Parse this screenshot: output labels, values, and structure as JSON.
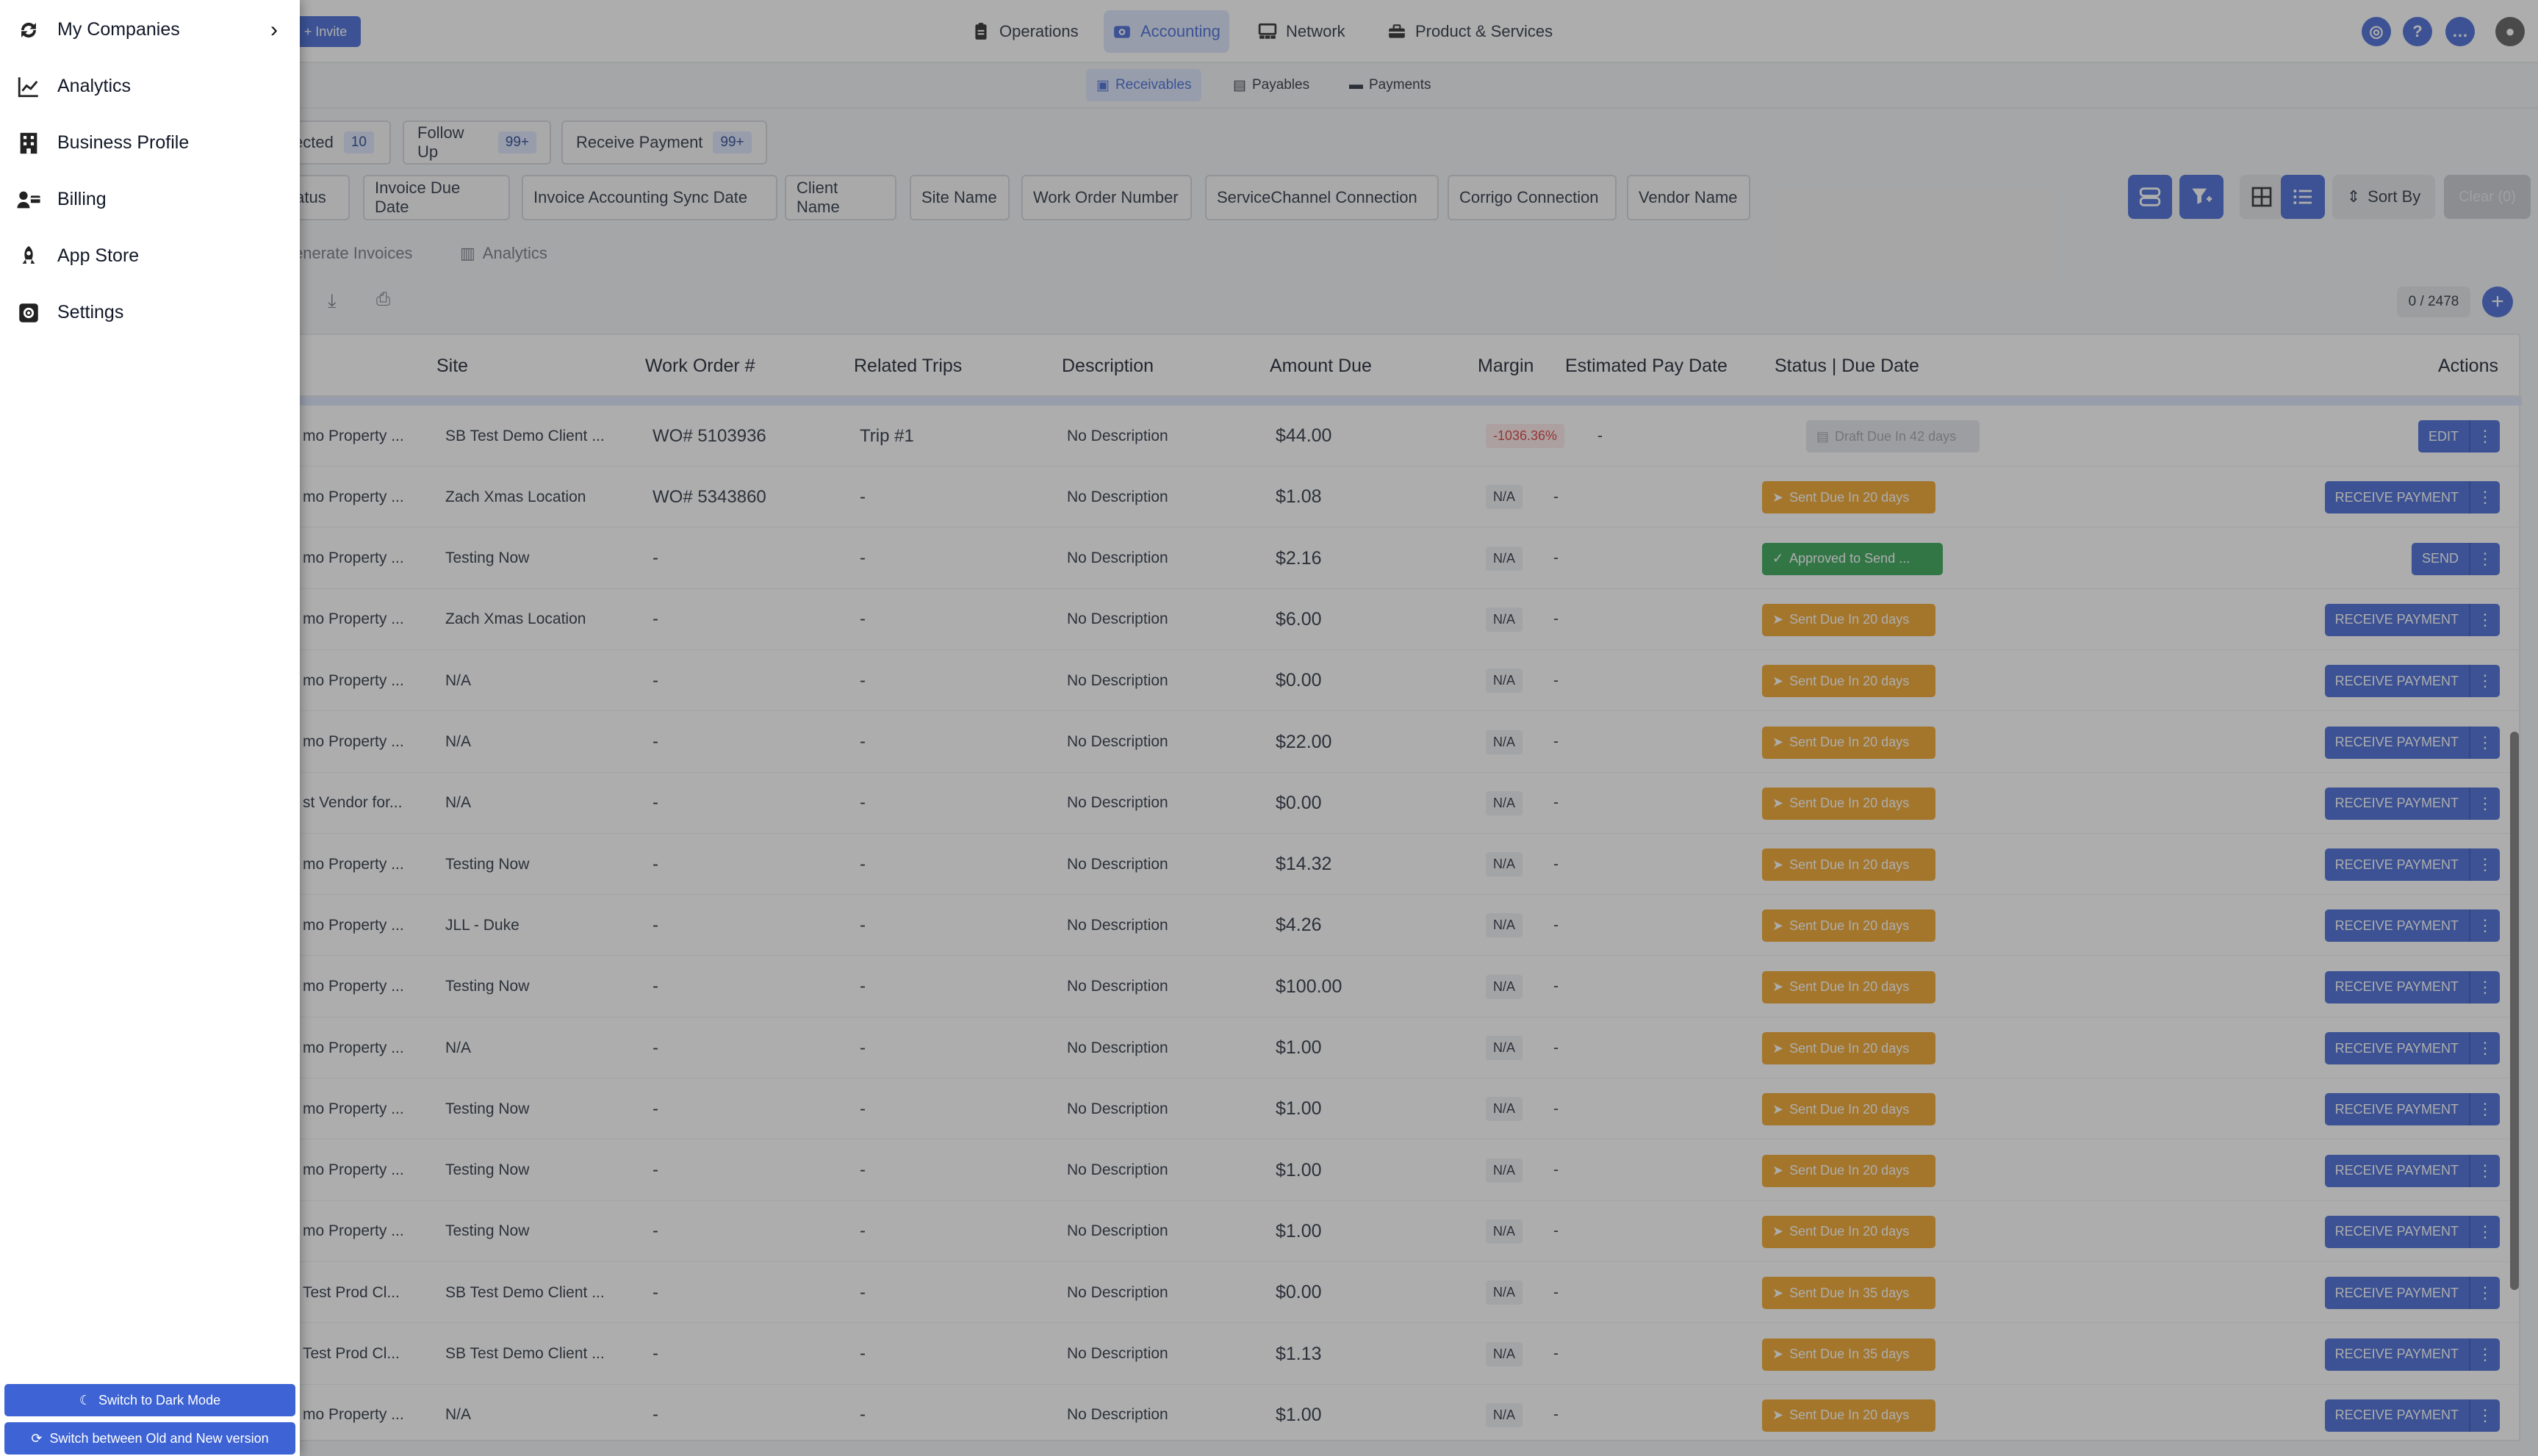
{
  "top_nav": {
    "invite": "+ Invite",
    "items": [
      {
        "label": "Operations",
        "icon": "clipboard-icon"
      },
      {
        "label": "Accounting",
        "icon": "wallet-icon"
      },
      {
        "label": "Network",
        "icon": "network-icon"
      },
      {
        "label": "Product & Services",
        "icon": "toolbox-icon"
      }
    ]
  },
  "sub_nav": {
    "items": [
      "Receivables",
      "Payables",
      "Payments"
    ]
  },
  "status_chips": [
    {
      "label": "ected",
      "count": "10"
    },
    {
      "label": "Follow Up",
      "count": "99+"
    },
    {
      "label": "Receive Payment",
      "count": "99+"
    }
  ],
  "filter_chips": [
    "tatus",
    "Invoice Due Date",
    "Invoice Accounting Sync Date",
    "Client Name",
    "Site Name",
    "Work Order Number",
    "ServiceChannel Connection",
    "Corrigo Connection",
    "Vendor Name"
  ],
  "toolbar": {
    "sort_by": "Sort By",
    "clear": "Clear (0)"
  },
  "tabs": {
    "generate": "enerate Invoices",
    "analytics": "Analytics"
  },
  "counter": "0 / 2478",
  "table": {
    "headers": [
      "Site",
      "Work Order #",
      "Related Trips",
      "Description",
      "Amount Due",
      "Margin",
      "Estimated Pay Date",
      "Status | Due Date",
      "Actions"
    ],
    "rows": [
      {
        "client": "mo Property ...",
        "site": "SB Test Demo Client ...",
        "wo": "WO# 5103936",
        "trips": "Trip #1",
        "desc": "No Description",
        "amount": "$44.00",
        "margin": "-1036.36%",
        "pay_date": "-",
        "status": "Draft Due In 42 days",
        "status_type": "draft",
        "action": "EDIT"
      },
      {
        "client": "mo Property ...",
        "site": "Zach Xmas Location",
        "wo": "WO# 5343860",
        "trips": "-",
        "desc": "No Description",
        "amount": "$1.08",
        "margin": "N/A",
        "pay_date": "-",
        "status": "Sent Due In 20 days",
        "status_type": "sent",
        "action": "RECEIVE PAYMENT"
      },
      {
        "client": "mo Property ...",
        "site": "Testing Now",
        "wo": "-",
        "trips": "-",
        "desc": "No Description",
        "amount": "$2.16",
        "margin": "N/A",
        "pay_date": "-",
        "status": "Approved to Send ...",
        "status_type": "approved",
        "action": "SEND"
      },
      {
        "client": "mo Property ...",
        "site": "Zach Xmas Location",
        "wo": "-",
        "trips": "-",
        "desc": "No Description",
        "amount": "$6.00",
        "margin": "N/A",
        "pay_date": "-",
        "status": "Sent Due In 20 days",
        "status_type": "sent",
        "action": "RECEIVE PAYMENT"
      },
      {
        "client": "mo Property ...",
        "site": "N/A",
        "wo": "-",
        "trips": "-",
        "desc": "No Description",
        "amount": "$0.00",
        "margin": "N/A",
        "pay_date": "-",
        "status": "Sent Due In 20 days",
        "status_type": "sent",
        "action": "RECEIVE PAYMENT"
      },
      {
        "client": "mo Property ...",
        "site": "N/A",
        "wo": "-",
        "trips": "-",
        "desc": "No Description",
        "amount": "$22.00",
        "margin": "N/A",
        "pay_date": "-",
        "status": "Sent Due In 20 days",
        "status_type": "sent",
        "action": "RECEIVE PAYMENT"
      },
      {
        "client": "st Vendor for...",
        "site": "N/A",
        "wo": "-",
        "trips": "-",
        "desc": "No Description",
        "amount": "$0.00",
        "margin": "N/A",
        "pay_date": "-",
        "status": "Sent Due In 20 days",
        "status_type": "sent",
        "action": "RECEIVE PAYMENT"
      },
      {
        "client": "mo Property ...",
        "site": "Testing Now",
        "wo": "-",
        "trips": "-",
        "desc": "No Description",
        "amount": "$14.32",
        "margin": "N/A",
        "pay_date": "-",
        "status": "Sent Due In 20 days",
        "status_type": "sent",
        "action": "RECEIVE PAYMENT"
      },
      {
        "client": "mo Property ...",
        "site": "JLL - Duke",
        "wo": "-",
        "trips": "-",
        "desc": "No Description",
        "amount": "$4.26",
        "margin": "N/A",
        "pay_date": "-",
        "status": "Sent Due In 20 days",
        "status_type": "sent",
        "action": "RECEIVE PAYMENT"
      },
      {
        "client": "mo Property ...",
        "site": "Testing Now",
        "wo": "-",
        "trips": "-",
        "desc": "No Description",
        "amount": "$100.00",
        "margin": "N/A",
        "pay_date": "-",
        "status": "Sent Due In 20 days",
        "status_type": "sent",
        "action": "RECEIVE PAYMENT"
      },
      {
        "client": "mo Property ...",
        "site": "N/A",
        "wo": "-",
        "trips": "-",
        "desc": "No Description",
        "amount": "$1.00",
        "margin": "N/A",
        "pay_date": "-",
        "status": "Sent Due In 20 days",
        "status_type": "sent",
        "action": "RECEIVE PAYMENT"
      },
      {
        "client": "mo Property ...",
        "site": "Testing Now",
        "wo": "-",
        "trips": "-",
        "desc": "No Description",
        "amount": "$1.00",
        "margin": "N/A",
        "pay_date": "-",
        "status": "Sent Due In 20 days",
        "status_type": "sent",
        "action": "RECEIVE PAYMENT"
      },
      {
        "client": "mo Property ...",
        "site": "Testing Now",
        "wo": "-",
        "trips": "-",
        "desc": "No Description",
        "amount": "$1.00",
        "margin": "N/A",
        "pay_date": "-",
        "status": "Sent Due In 20 days",
        "status_type": "sent",
        "action": "RECEIVE PAYMENT"
      },
      {
        "client": "mo Property ...",
        "site": "Testing Now",
        "wo": "-",
        "trips": "-",
        "desc": "No Description",
        "amount": "$1.00",
        "margin": "N/A",
        "pay_date": "-",
        "status": "Sent Due In 20 days",
        "status_type": "sent",
        "action": "RECEIVE PAYMENT"
      },
      {
        "client": "Test Prod Cl...",
        "site": "SB Test Demo Client ...",
        "wo": "-",
        "trips": "-",
        "desc": "No Description",
        "amount": "$0.00",
        "margin": "N/A",
        "pay_date": "-",
        "status": "Sent Due In 35 days",
        "status_type": "sent",
        "action": "RECEIVE PAYMENT"
      },
      {
        "client": "Test Prod Cl...",
        "site": "SB Test Demo Client ...",
        "wo": "-",
        "trips": "-",
        "desc": "No Description",
        "amount": "$1.13",
        "margin": "N/A",
        "pay_date": "-",
        "status": "Sent Due In 35 days",
        "status_type": "sent",
        "action": "RECEIVE PAYMENT"
      },
      {
        "client": "mo Property ...",
        "site": "N/A",
        "wo": "-",
        "trips": "-",
        "desc": "No Description",
        "amount": "$1.00",
        "margin": "N/A",
        "pay_date": "-",
        "status": "Sent Due In 20 days",
        "status_type": "sent",
        "action": "RECEIVE PAYMENT"
      }
    ]
  },
  "drawer": {
    "items": [
      {
        "label": "My Companies",
        "icon": "refresh-icon"
      },
      {
        "label": "Analytics",
        "icon": "chart-line-icon"
      },
      {
        "label": "Business Profile",
        "icon": "building-icon"
      },
      {
        "label": "Billing",
        "icon": "billing-icon"
      },
      {
        "label": "App Store",
        "icon": "rocket-icon"
      },
      {
        "label": "Settings",
        "icon": "gear-icon"
      }
    ],
    "dark_mode": "Switch to Dark Mode",
    "version": "Switch between Old and New version"
  },
  "colors": {
    "primary": "#3d63d4",
    "sent": "#f0a020",
    "approved": "#2ea04f",
    "overlay": "rgba(60,60,60,0.42)"
  }
}
